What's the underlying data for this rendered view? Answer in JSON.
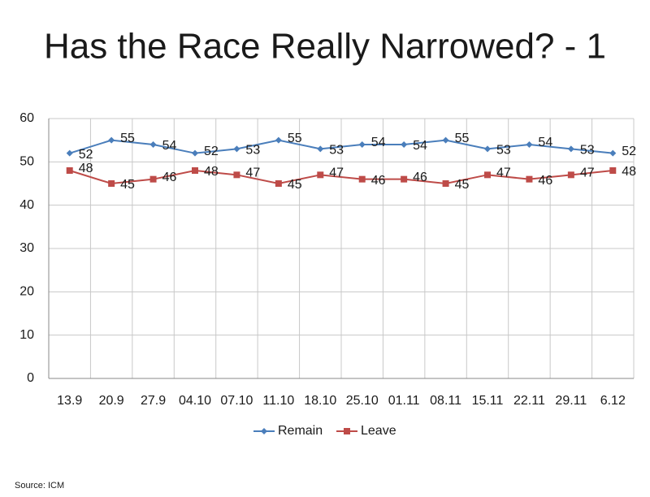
{
  "chart_data": {
    "type": "line",
    "title": "Has the Race Really Narrowed? - 1",
    "categories": [
      "13.9",
      "20.9",
      "27.9",
      "04.10",
      "07.10",
      "11.10",
      "18.10",
      "25.10",
      "01.11",
      "08.11",
      "15.11",
      "22.11",
      "29.11",
      "6.12"
    ],
    "series": [
      {
        "name": "Remain",
        "color": "#4a7ebb",
        "marker": "diamond",
        "values": [
          52,
          55,
          54,
          52,
          53,
          55,
          53,
          54,
          54,
          55,
          53,
          54,
          53,
          52
        ]
      },
      {
        "name": "Leave",
        "color": "#be4b48",
        "marker": "square",
        "values": [
          48,
          45,
          46,
          48,
          47,
          45,
          47,
          46,
          46,
          45,
          47,
          46,
          47,
          48
        ]
      }
    ],
    "ylim": [
      0,
      60
    ],
    "yticks": [
      0,
      10,
      20,
      30,
      40,
      50,
      60
    ],
    "grid": true,
    "legend": "bottom",
    "source": "Source: ICM"
  }
}
